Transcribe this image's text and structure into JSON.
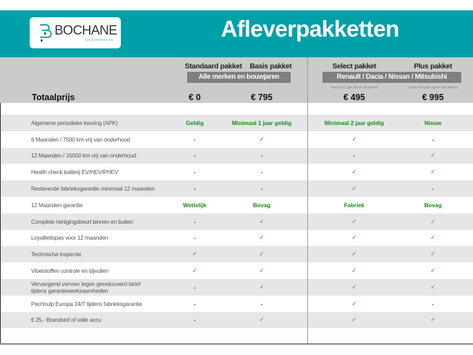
{
  "header": {
    "brand": "BOCHANE",
    "tagline": "ALS JE VOORUIT WIL",
    "title": "Afleverpakketten",
    "accent": "#00a0a8"
  },
  "packages": [
    {
      "name": "Standaard pakket",
      "price": "€ 0"
    },
    {
      "name": "Basis pakket",
      "price": "€ 795"
    },
    {
      "name": "Select pakket",
      "price": "€ 495",
      "note": "Auto's tot 1 jaar oud en 20.000 km"
    },
    {
      "name": "Plus pakket",
      "price": "€ 995",
      "note": "Auto's tot 5 jaar oud en 100.000 km"
    }
  ],
  "groups": [
    "Alle merken en bouwjaren",
    "Renault / Dacia / Nissan / Mitsubishi"
  ],
  "total_label": "Totaalprijs",
  "rows": [
    {
      "label": "Algemene periodieke keuring (APK)",
      "values": [
        "Geldig",
        "Minimaal 1 jaar geldig",
        "Minimaal 2 jaar geldig",
        "Nieuw"
      ]
    },
    {
      "label": "6 Maanden / 7500 km vrij van onderhoud",
      "values": [
        "-",
        "✓",
        "✓",
        "-"
      ]
    },
    {
      "label": "12 Maanden / 15000 km vrij van onderhoud",
      "values": [
        "-",
        "-",
        "-",
        "✓"
      ]
    },
    {
      "label": "Health check batterij EV/HEV/PHEV",
      "values": [
        "-",
        "-",
        "✓",
        "✓"
      ]
    },
    {
      "label": "Resterende fabrieksgarantie minimaal 12 maanden",
      "values": [
        "-",
        "-",
        "✓",
        "-"
      ]
    },
    {
      "label": "12 Maanden  garantie",
      "values": [
        "Wettelijk",
        "Bovag",
        "Fabriek",
        "Bovag"
      ]
    },
    {
      "label": "Complete reinigingsbeurt binnen en buiten",
      "values": [
        "-",
        "✓",
        "✓",
        "✓"
      ]
    },
    {
      "label": "Loyaliteitspas voor 12 maanden",
      "values": [
        "-",
        "✓",
        "✓",
        "✓"
      ]
    },
    {
      "label": "Technische inspectie",
      "values": [
        "✓",
        "✓",
        "✓",
        "✓"
      ]
    },
    {
      "label": "Vloeistoffen controle en bijvullen",
      "values": [
        "✓",
        "✓",
        "✓",
        "✓"
      ]
    },
    {
      "label": "Vervangend vervoer tegen gereduceerd tarief\ntijdens garantiewerkzaamheden",
      "values": [
        "-",
        "✓",
        "✓",
        "✓"
      ]
    },
    {
      "label": "Pechhulp Europa 24/7 tijdens fabrieksgarantie",
      "values": [
        "-",
        "-",
        "✓",
        "-"
      ]
    },
    {
      "label": "€ 25,- Brandstof of  volle accu",
      "values": [
        "-",
        "✓",
        "✓",
        "✓"
      ]
    }
  ]
}
